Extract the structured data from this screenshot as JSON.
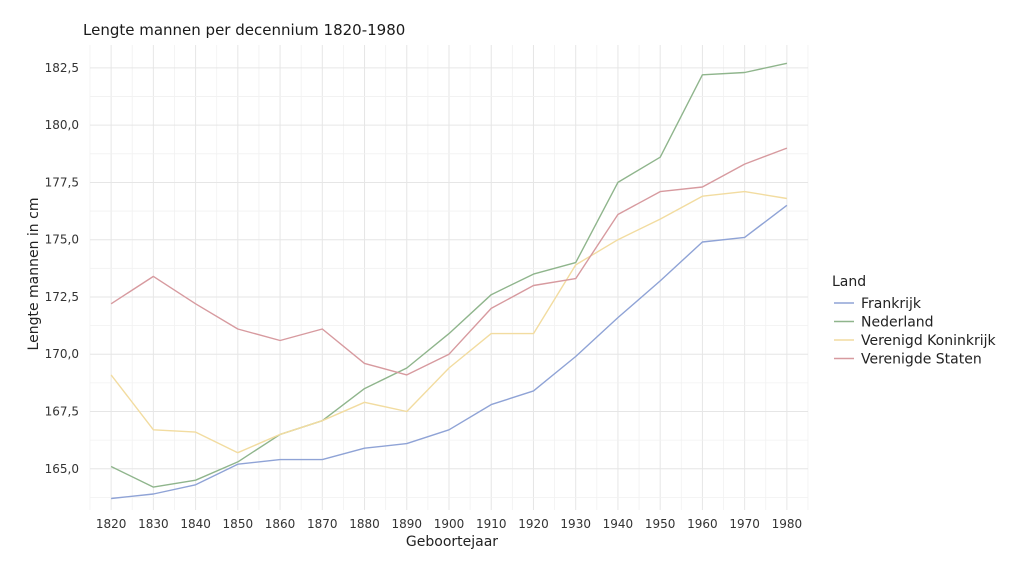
{
  "chart_data": {
    "type": "line",
    "title": "Lengte mannen per decennium 1820-1980",
    "xlabel": "Geboortejaar",
    "ylabel": "Lengte mannen in cm",
    "x": [
      1820,
      1830,
      1840,
      1850,
      1860,
      1870,
      1880,
      1890,
      1900,
      1910,
      1920,
      1930,
      1940,
      1950,
      1960,
      1970,
      1980
    ],
    "x_tick_labels": [
      "1820",
      "1830",
      "1840",
      "1850",
      "1860",
      "1870",
      "1880",
      "1890",
      "1900",
      "1910",
      "1920",
      "1930",
      "1940",
      "1950",
      "1960",
      "1970",
      "1980"
    ],
    "y_ticks": [
      165.0,
      167.5,
      170.0,
      172.5,
      175.0,
      177.5,
      180.0,
      182.5
    ],
    "y_tick_labels": [
      "165,0",
      "167,5",
      "170,0",
      "172,5",
      "175,0",
      "177,5",
      "180,0",
      "182,5"
    ],
    "xlim": [
      1815,
      1985
    ],
    "ylim": [
      163.2,
      183.5
    ],
    "grid": true,
    "legend": {
      "title": "Land",
      "position": "right"
    },
    "series": [
      {
        "name": "Frankrijk",
        "color": "#8fa3d6",
        "values": [
          163.7,
          163.9,
          164.3,
          165.2,
          165.4,
          165.4,
          165.9,
          166.1,
          166.7,
          167.8,
          168.4,
          169.9,
          171.6,
          173.2,
          174.9,
          175.1,
          176.5
        ]
      },
      {
        "name": "Nederland",
        "color": "#8fb58c",
        "values": [
          165.1,
          164.2,
          164.5,
          165.3,
          166.5,
          167.1,
          168.5,
          169.4,
          170.9,
          172.6,
          173.5,
          174.0,
          177.5,
          178.6,
          182.2,
          182.3,
          182.7
        ]
      },
      {
        "name": "Verenigd Koninkrijk",
        "color": "#f2dca0",
        "values": [
          169.1,
          166.7,
          166.6,
          165.7,
          166.5,
          167.1,
          167.9,
          167.5,
          169.4,
          170.9,
          170.9,
          173.9,
          175.0,
          175.9,
          176.9,
          177.1,
          176.8
        ]
      },
      {
        "name": "Verenigde Staten",
        "color": "#d79a9f",
        "values": [
          172.2,
          173.4,
          172.2,
          171.1,
          170.6,
          171.1,
          169.6,
          169.1,
          170.0,
          172.0,
          173.0,
          173.3,
          176.1,
          177.1,
          177.3,
          178.3,
          179.0
        ]
      }
    ]
  }
}
